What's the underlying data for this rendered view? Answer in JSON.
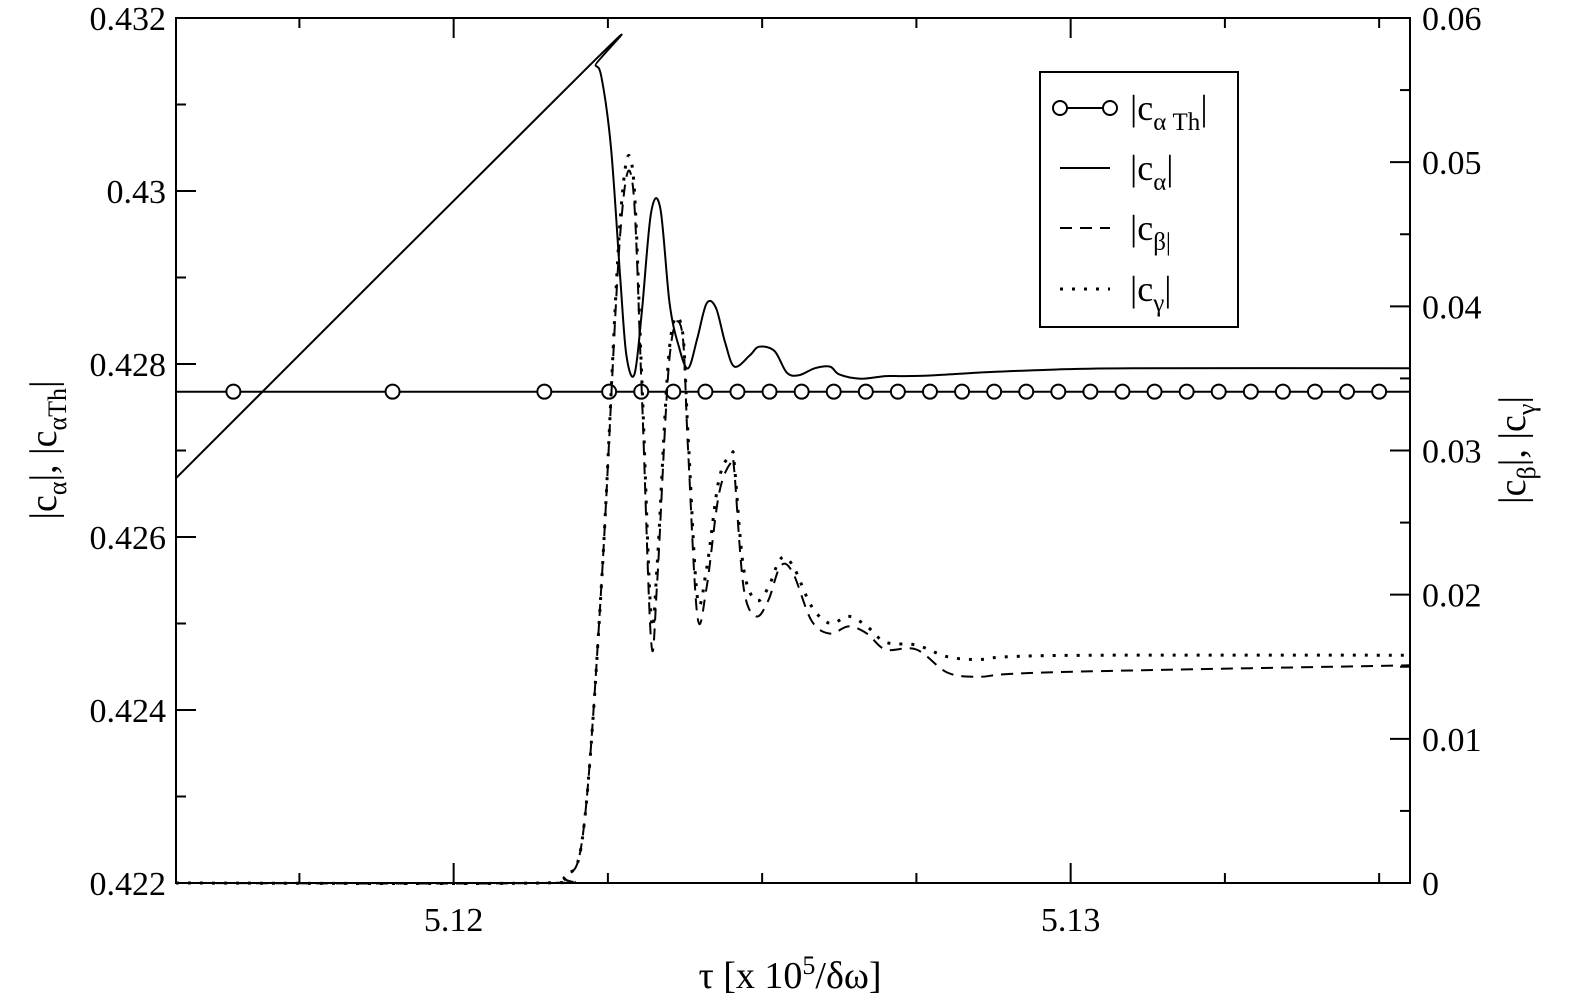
{
  "chart_data": {
    "type": "line",
    "x_range": [
      5.1155,
      5.1355
    ],
    "x_ticks": [
      5.12,
      5.13
    ],
    "x_tick_labels": [
      "5.12",
      "5.13"
    ],
    "x_minor_step": 0.0025,
    "y_left_range": [
      0.422,
      0.432
    ],
    "y_left_ticks": [
      0.422,
      0.424,
      0.426,
      0.428,
      0.43,
      0.432
    ],
    "y_left_tick_labels": [
      "0.422",
      "0.424",
      "0.426",
      "0.428",
      "0.43",
      "0.432"
    ],
    "y_left_minor_step": 0.001,
    "y_right_range": [
      0,
      0.06
    ],
    "y_right_ticks": [
      0,
      0.01,
      0.02,
      0.03,
      0.04,
      0.05,
      0.06
    ],
    "y_right_tick_labels": [
      "0",
      "0.01",
      "0.02",
      "0.03",
      "0.04",
      "0.05",
      "0.06"
    ],
    "y_right_minor_step": 0.005,
    "xlabel": {
      "main": "τ [x 10",
      "sup": "5",
      "tail": "/δω]"
    },
    "ylabel_left": {
      "p1": "|c",
      "s1": "α",
      "p2": "|, |c",
      "s2": "αTh",
      "p3": "|"
    },
    "ylabel_right": {
      "p1": "|c",
      "s1": "β",
      "p2": "|, |c",
      "s2": "γ",
      "p3": "|"
    },
    "legend": {
      "position": "top-right",
      "entries": [
        {
          "key": "c_alpha_th",
          "style": "line-circles",
          "p1": "|c",
          "sub": "α Th",
          "p2": "|"
        },
        {
          "key": "c_alpha",
          "style": "solid",
          "p1": "|c",
          "sub": "α",
          "p2": "|"
        },
        {
          "key": "c_beta",
          "style": "dashed",
          "p1": "|c",
          "sub": "β|",
          "p2": ""
        },
        {
          "key": "c_gamma",
          "style": "dotted",
          "p1": "|c",
          "sub": "γ",
          "p2": "|"
        }
      ]
    },
    "series": [
      {
        "key": "c_alpha_th",
        "axis": "left",
        "x": [
          5.1155,
          5.1355
        ],
        "y": [
          0.42768,
          0.42768
        ],
        "markers_x": [
          5.11643,
          5.11901,
          5.12147,
          5.12252,
          5.12304,
          5.12356,
          5.12408,
          5.1246,
          5.12512,
          5.12564,
          5.12616,
          5.12668,
          5.1272,
          5.12772,
          5.12824,
          5.12876,
          5.12928,
          5.1298,
          5.13032,
          5.13084,
          5.13136,
          5.13188,
          5.1324,
          5.13292,
          5.13344,
          5.13396,
          5.13448,
          5.135
        ]
      },
      {
        "key": "c_alpha",
        "axis": "left",
        "x": [
          5.1155,
          5.1222,
          5.1223,
          5.1224,
          5.12255,
          5.1227,
          5.1228,
          5.12293,
          5.12305,
          5.1232,
          5.12335,
          5.1235,
          5.12365,
          5.1238,
          5.12395,
          5.1241,
          5.12425,
          5.1244,
          5.12455,
          5.1248,
          5.12495,
          5.1252,
          5.1254,
          5.1256,
          5.12585,
          5.1261,
          5.12625,
          5.1266,
          5.127,
          5.1273,
          5.1278,
          5.1285,
          5.1295,
          5.131,
          5.1355
        ],
        "y": [
          0.42668,
          0.43145,
          0.43145,
          0.4313,
          0.4305,
          0.429,
          0.4281,
          0.42788,
          0.4286,
          0.42975,
          0.4298,
          0.4287,
          0.4282,
          0.42795,
          0.4283,
          0.4287,
          0.42865,
          0.42825,
          0.42797,
          0.4281,
          0.4282,
          0.42815,
          0.4279,
          0.42787,
          0.42795,
          0.42797,
          0.42788,
          0.42783,
          0.42786,
          0.42786,
          0.42787,
          0.4279,
          0.42793,
          0.42795,
          0.42795
        ]
      },
      {
        "key": "c_beta",
        "axis": "right",
        "x": [
          5.1155,
          5.1214,
          5.1218,
          5.1221,
          5.1224,
          5.1227,
          5.1229,
          5.12305,
          5.1232,
          5.1233,
          5.1235,
          5.1237,
          5.1238,
          5.12395,
          5.1241,
          5.1243,
          5.1245,
          5.12455,
          5.1247,
          5.1249,
          5.1251,
          5.1253,
          5.1255,
          5.1258,
          5.1261,
          5.1264,
          5.1267,
          5.127,
          5.1275,
          5.128,
          5.1285,
          5.129,
          5.1305,
          5.1355
        ],
        "y": [
          0,
          0,
          0.0005,
          0.0035,
          0.021,
          0.045,
          0.0485,
          0.034,
          0.0168,
          0.021,
          0.0365,
          0.0383,
          0.03,
          0.0185,
          0.0205,
          0.027,
          0.0292,
          0.0285,
          0.0205,
          0.0185,
          0.0196,
          0.022,
          0.0215,
          0.0182,
          0.0173,
          0.0178,
          0.0173,
          0.0162,
          0.0162,
          0.0146,
          0.0143,
          0.0145,
          0.0147,
          0.0151
        ]
      },
      {
        "key": "c_gamma",
        "axis": "right",
        "x": [
          5.1155,
          5.1214,
          5.1218,
          5.1221,
          5.1224,
          5.1227,
          5.1229,
          5.12305,
          5.1232,
          5.1233,
          5.1235,
          5.1237,
          5.1238,
          5.12395,
          5.1241,
          5.1243,
          5.1245,
          5.12455,
          5.1247,
          5.1249,
          5.1251,
          5.1253,
          5.1255,
          5.1258,
          5.1261,
          5.1264,
          5.1267,
          5.127,
          5.1275,
          5.128,
          5.1285,
          5.129,
          5.1305,
          5.1355
        ],
        "y": [
          0,
          0,
          0.0005,
          0.0035,
          0.021,
          0.046,
          0.0495,
          0.035,
          0.0185,
          0.0222,
          0.0372,
          0.0385,
          0.031,
          0.0198,
          0.0218,
          0.028,
          0.0297,
          0.029,
          0.0218,
          0.0196,
          0.0205,
          0.0225,
          0.022,
          0.0192,
          0.018,
          0.0185,
          0.0178,
          0.0167,
          0.0165,
          0.0157,
          0.0155,
          0.0157,
          0.0158,
          0.0158
        ]
      }
    ]
  }
}
